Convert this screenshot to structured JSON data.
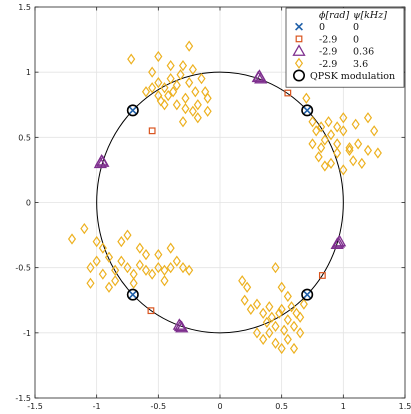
{
  "chart_data": {
    "type": "scatter",
    "xlim": [
      -1.5,
      1.5
    ],
    "ylim": [
      -1.5,
      1.5
    ],
    "xticks": [
      "-1.5",
      "-1",
      "-0.5",
      "0",
      "0.5",
      "1",
      "1.5"
    ],
    "yticks": [
      "-1.5",
      "-1",
      "-0.5",
      "0",
      "0.5",
      "1",
      "1.5"
    ],
    "grid": true,
    "legend_position": "top-right",
    "legend_header": [
      "ϕ[rad]",
      "ψ[kHz]"
    ],
    "unit_circle": true,
    "series": [
      {
        "phi": "0",
        "psi": "0",
        "marker": "x",
        "color": "#1f5fa8",
        "points": [
          [
            0.707,
            0.707
          ],
          [
            -0.707,
            0.707
          ],
          [
            -0.707,
            -0.707
          ],
          [
            0.707,
            -0.707
          ]
        ]
      },
      {
        "phi": "-2.9",
        "psi": "0",
        "marker": "square",
        "color": "#d9541e",
        "points": [
          [
            -0.55,
            0.55
          ],
          [
            0.55,
            0.84
          ],
          [
            0.83,
            -0.56
          ],
          [
            -0.56,
            -0.83
          ]
        ]
      },
      {
        "phi": "-2.9",
        "psi": "0.36",
        "marker": "triangle",
        "color": "#7e2f8e",
        "points": [
          [
            0.32,
            0.97
          ],
          [
            0.31,
            0.96
          ],
          [
            0.33,
            0.95
          ],
          [
            -0.96,
            0.32
          ],
          [
            -0.95,
            0.31
          ],
          [
            -0.97,
            0.3
          ],
          [
            0.96,
            -0.31
          ],
          [
            0.95,
            -0.32
          ],
          [
            0.97,
            -0.3
          ],
          [
            -0.32,
            -0.95
          ],
          [
            -0.31,
            -0.96
          ],
          [
            -0.33,
            -0.94
          ]
        ]
      },
      {
        "phi": "-2.9",
        "psi": "3.6",
        "marker": "diamond",
        "color": "#edb120",
        "points": [
          [
            -0.72,
            1.1
          ],
          [
            -0.55,
            1.0
          ],
          [
            -0.5,
            0.92
          ],
          [
            -0.45,
            0.88
          ],
          [
            -0.4,
            0.95
          ],
          [
            -0.38,
            0.85
          ],
          [
            -0.35,
            0.9
          ],
          [
            -0.3,
            1.05
          ],
          [
            -0.28,
            0.8
          ],
          [
            -0.25,
            0.92
          ],
          [
            -0.22,
            1.02
          ],
          [
            -0.2,
            0.85
          ],
          [
            -0.18,
            0.75
          ],
          [
            -0.15,
            0.95
          ],
          [
            -0.12,
            0.85
          ],
          [
            -0.1,
            0.8
          ],
          [
            -0.45,
            0.75
          ],
          [
            -0.42,
            0.82
          ],
          [
            -0.35,
            0.75
          ],
          [
            -0.28,
            0.72
          ],
          [
            -0.22,
            0.7
          ],
          [
            -0.5,
            0.82
          ],
          [
            -0.18,
            0.65
          ],
          [
            -0.1,
            0.7
          ],
          [
            -0.3,
            0.62
          ],
          [
            -0.55,
            0.88
          ],
          [
            -0.6,
            0.85
          ],
          [
            -0.5,
            1.12
          ],
          [
            -0.48,
            0.78
          ],
          [
            -0.25,
            1.2
          ],
          [
            -0.32,
            0.98
          ],
          [
            -0.4,
            1.05
          ],
          [
            0.7,
            0.8
          ],
          [
            0.75,
            0.62
          ],
          [
            0.78,
            0.55
          ],
          [
            0.82,
            0.58
          ],
          [
            0.85,
            0.48
          ],
          [
            0.9,
            0.52
          ],
          [
            0.95,
            0.45
          ],
          [
            1.0,
            0.55
          ],
          [
            1.05,
            0.42
          ],
          [
            1.1,
            0.6
          ],
          [
            1.2,
            0.65
          ],
          [
            1.28,
            0.38
          ],
          [
            0.8,
            0.35
          ],
          [
            0.85,
            0.28
          ],
          [
            0.9,
            0.3
          ],
          [
            0.95,
            0.38
          ],
          [
            1.0,
            0.25
          ],
          [
            1.05,
            0.4
          ],
          [
            1.08,
            0.32
          ],
          [
            1.12,
            0.45
          ],
          [
            1.15,
            0.3
          ],
          [
            1.2,
            0.4
          ],
          [
            0.88,
            0.62
          ],
          [
            1.0,
            0.65
          ],
          [
            0.95,
            0.58
          ],
          [
            0.82,
            0.42
          ],
          [
            0.75,
            0.45
          ],
          [
            1.25,
            0.55
          ],
          [
            -1.2,
            -0.28
          ],
          [
            -1.1,
            -0.2
          ],
          [
            -1.05,
            -0.5
          ],
          [
            -1.0,
            -0.3
          ],
          [
            -0.95,
            -0.55
          ],
          [
            -0.9,
            -0.42
          ],
          [
            -0.85,
            -0.52
          ],
          [
            -0.8,
            -0.45
          ],
          [
            -0.75,
            -0.5
          ],
          [
            -0.7,
            -0.55
          ],
          [
            -0.65,
            -0.48
          ],
          [
            -0.6,
            -0.52
          ],
          [
            -0.55,
            -0.55
          ],
          [
            -0.5,
            -0.5
          ],
          [
            -0.45,
            -0.52
          ],
          [
            -0.4,
            -0.5
          ],
          [
            -0.35,
            -0.45
          ],
          [
            -0.3,
            -0.5
          ],
          [
            -0.25,
            -0.52
          ],
          [
            -0.8,
            -0.3
          ],
          [
            -0.75,
            -0.25
          ],
          [
            -0.85,
            -0.6
          ],
          [
            -0.9,
            -0.65
          ],
          [
            -0.7,
            -0.62
          ],
          [
            -0.6,
            -0.4
          ],
          [
            -0.5,
            -0.4
          ],
          [
            -0.45,
            -0.6
          ],
          [
            -0.4,
            -0.35
          ],
          [
            -1.05,
            -0.62
          ],
          [
            -0.95,
            -0.35
          ],
          [
            -0.65,
            -0.35
          ],
          [
            -1.0,
            -0.45
          ],
          [
            0.18,
            -0.6
          ],
          [
            0.2,
            -0.75
          ],
          [
            0.25,
            -0.82
          ],
          [
            0.3,
            -0.78
          ],
          [
            0.35,
            -0.85
          ],
          [
            0.4,
            -0.8
          ],
          [
            0.45,
            -0.95
          ],
          [
            0.5,
            -0.82
          ],
          [
            0.55,
            -0.9
          ],
          [
            0.6,
            -0.95
          ],
          [
            0.65,
            -0.88
          ],
          [
            0.38,
            -0.92
          ],
          [
            0.42,
            -0.88
          ],
          [
            0.48,
            -0.85
          ],
          [
            0.52,
            -0.98
          ],
          [
            0.58,
            -0.8
          ],
          [
            0.62,
            -0.85
          ],
          [
            0.35,
            -1.05
          ],
          [
            0.45,
            -1.08
          ],
          [
            0.55,
            -1.05
          ],
          [
            0.3,
            -1.0
          ],
          [
            0.45,
            -0.5
          ],
          [
            0.5,
            -0.65
          ],
          [
            0.55,
            -0.72
          ],
          [
            0.65,
            -1.0
          ],
          [
            0.4,
            -1.0
          ],
          [
            0.5,
            -1.12
          ],
          [
            0.68,
            -0.78
          ],
          [
            0.22,
            -0.65
          ],
          [
            0.6,
            -1.12
          ]
        ]
      },
      {
        "name": "QPSK modulation",
        "marker": "circle",
        "color": "#000000",
        "points": [
          [
            0.707,
            0.707
          ],
          [
            -0.707,
            0.707
          ],
          [
            -0.707,
            -0.707
          ],
          [
            0.707,
            -0.707
          ]
        ]
      }
    ]
  }
}
